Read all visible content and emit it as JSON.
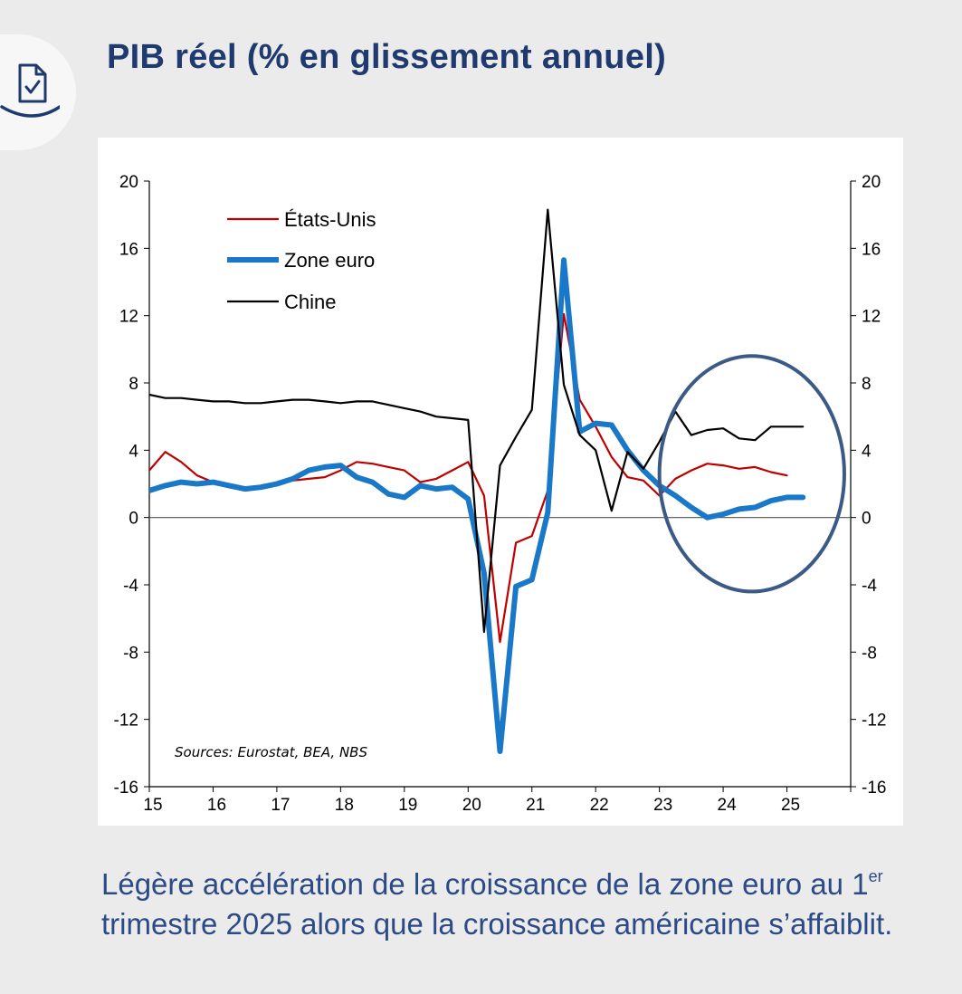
{
  "title": "PIB réel (% en glissement annuel)",
  "caption": {
    "part1": "Légère accélération de la croissance de la zone euro au 1",
    "superscript": "er",
    "part2": " trimestre 2025 alors que la croissance américaine s’affaiblit."
  },
  "badge_icon": "checklist-document-icon",
  "colors": {
    "us": "#c00000",
    "euro": "#1a78c8",
    "china": "#000000",
    "highlight_circle": "#3c5a86",
    "title": "#1f3a6e",
    "caption": "#2b4a86"
  },
  "chart_data": {
    "type": "line",
    "x_tick_labels": [
      "15",
      "16",
      "17",
      "18",
      "19",
      "20",
      "21",
      "22",
      "23",
      "24",
      "25"
    ],
    "x_ticks": [
      2015,
      2016,
      2017,
      2018,
      2019,
      2020,
      2021,
      2022,
      2023,
      2024,
      2025
    ],
    "xlim": [
      2015,
      2026
    ],
    "ylim": [
      -16,
      20
    ],
    "y_ticks": [
      -16,
      -12,
      -8,
      -4,
      0,
      4,
      8,
      12,
      16,
      20
    ],
    "y_tick_labels": [
      "-16",
      "-12",
      "-8",
      "-4",
      "0",
      "4",
      "8",
      "12",
      "16",
      "20"
    ],
    "right_axis_mirrors_left": true,
    "zero_line": true,
    "source": "Sources: Eurostat, BEA, NBS",
    "highlight": {
      "shape": "ellipse",
      "x_range": [
        2023.0,
        2025.9
      ],
      "y_range": [
        -4.4,
        9.6
      ]
    },
    "series": [
      {
        "name": "États-Unis",
        "style": "thin",
        "x": [
          2015,
          2015.25,
          2015.5,
          2015.75,
          2016,
          2016.25,
          2016.5,
          2016.75,
          2017,
          2017.25,
          2017.5,
          2017.75,
          2018,
          2018.25,
          2018.5,
          2018.75,
          2019,
          2019.25,
          2019.5,
          2019.75,
          2020,
          2020.25,
          2020.5,
          2020.75,
          2021,
          2021.25,
          2021.5,
          2021.75,
          2022,
          2022.25,
          2022.5,
          2022.75,
          2023,
          2023.25,
          2023.5,
          2023.75,
          2024,
          2024.25,
          2024.5,
          2024.75,
          2025
        ],
        "values": [
          2.8,
          3.9,
          3.3,
          2.5,
          2.1,
          1.8,
          1.6,
          1.9,
          2.0,
          2.2,
          2.3,
          2.4,
          2.8,
          3.3,
          3.2,
          3.0,
          2.8,
          2.1,
          2.3,
          2.8,
          3.3,
          1.3,
          -7.4,
          -1.5,
          -1.1,
          1.6,
          12.1,
          7.0,
          5.4,
          3.6,
          2.4,
          2.2,
          1.3,
          2.3,
          2.8,
          3.2,
          3.1,
          2.9,
          3.0,
          2.7,
          2.5
        ]
      },
      {
        "name": "Zone euro",
        "style": "thick",
        "x": [
          2015,
          2015.25,
          2015.5,
          2015.75,
          2016,
          2016.25,
          2016.5,
          2016.75,
          2017,
          2017.25,
          2017.5,
          2017.75,
          2018,
          2018.25,
          2018.5,
          2018.75,
          2019,
          2019.25,
          2019.5,
          2019.75,
          2020,
          2020.25,
          2020.5,
          2020.75,
          2021,
          2021.25,
          2021.5,
          2021.75,
          2022,
          2022.25,
          2022.5,
          2022.75,
          2023,
          2023.25,
          2023.5,
          2023.75,
          2024,
          2024.25,
          2024.5,
          2024.75,
          2025,
          2025.25
        ],
        "values": [
          1.6,
          1.9,
          2.1,
          2.0,
          2.1,
          1.9,
          1.7,
          1.8,
          2.0,
          2.3,
          2.8,
          3.0,
          3.1,
          2.4,
          2.1,
          1.4,
          1.2,
          1.9,
          1.7,
          1.8,
          1.1,
          -3.3,
          -13.9,
          -4.1,
          -3.7,
          0.3,
          15.3,
          5.1,
          5.6,
          5.5,
          4.0,
          2.8,
          1.9,
          1.3,
          0.6,
          0.0,
          0.2,
          0.5,
          0.6,
          1.0,
          1.2,
          1.2
        ]
      },
      {
        "name": "Chine",
        "style": "thin",
        "x": [
          2015,
          2015.25,
          2015.5,
          2015.75,
          2016,
          2016.25,
          2016.5,
          2016.75,
          2017,
          2017.25,
          2017.5,
          2017.75,
          2018,
          2018.25,
          2018.5,
          2018.75,
          2019,
          2019.25,
          2019.5,
          2019.75,
          2020,
          2020.25,
          2020.5,
          2020.75,
          2021,
          2021.25,
          2021.5,
          2021.75,
          2022,
          2022.25,
          2022.5,
          2022.75,
          2023,
          2023.25,
          2023.5,
          2023.75,
          2024,
          2024.25,
          2024.5,
          2024.75,
          2025,
          2025.25
        ],
        "values": [
          7.3,
          7.1,
          7.1,
          7.0,
          6.9,
          6.9,
          6.8,
          6.8,
          6.9,
          7.0,
          7.0,
          6.9,
          6.8,
          6.9,
          6.9,
          6.7,
          6.5,
          6.3,
          6.0,
          5.9,
          5.8,
          -6.8,
          3.1,
          4.8,
          6.4,
          18.3,
          7.9,
          4.9,
          4.0,
          0.4,
          3.9,
          2.9,
          4.5,
          6.3,
          4.9,
          5.2,
          5.3,
          4.7,
          4.6,
          5.4,
          5.4,
          5.4
        ]
      }
    ]
  }
}
